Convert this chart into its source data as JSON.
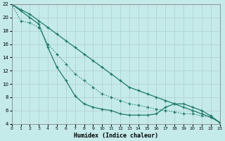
{
  "xlabel": "Humidex (Indice chaleur)",
  "xlim": [
    0,
    23
  ],
  "ylim": [
    4,
    22
  ],
  "xticks": [
    0,
    1,
    2,
    3,
    4,
    5,
    6,
    7,
    8,
    9,
    10,
    11,
    12,
    13,
    14,
    15,
    16,
    17,
    18,
    19,
    20,
    21,
    22,
    23
  ],
  "yticks": [
    4,
    6,
    8,
    10,
    12,
    14,
    16,
    18,
    20,
    22
  ],
  "background_color": "#c5eaea",
  "grid_color": "#b0cccc",
  "line_color": "#1e7a6a",
  "curve_steep_x": [
    0,
    1,
    2,
    3,
    4,
    5,
    6,
    7,
    8,
    9,
    10,
    11,
    12,
    13,
    14,
    15,
    16,
    17,
    18,
    19,
    20,
    21,
    22,
    23
  ],
  "curve_steep_y": [
    22,
    21,
    20,
    19,
    15.5,
    12.5,
    10.5,
    8.2,
    7.0,
    6.5,
    6.2,
    6.0,
    5.5,
    5.3,
    5.3,
    5.3,
    5.5,
    6.5,
    7.0,
    7.0,
    6.5,
    6.0,
    5.2,
    4.2
  ],
  "curve_dotted_x": [
    0,
    1,
    2,
    3,
    4,
    5,
    6,
    7,
    8,
    9,
    10,
    11,
    12,
    13,
    14,
    15,
    16,
    17,
    18,
    19,
    20,
    21,
    22,
    23
  ],
  "curve_dotted_y": [
    22,
    19.5,
    19.2,
    18.5,
    16.0,
    14.5,
    13.0,
    11.5,
    10.5,
    9.5,
    8.5,
    8.0,
    7.5,
    7.0,
    6.8,
    6.5,
    6.2,
    6.0,
    5.8,
    5.5,
    5.5,
    5.2,
    5.0,
    4.2
  ],
  "curve_diag_x": [
    0,
    1,
    2,
    3,
    4,
    5,
    6,
    7,
    8,
    9,
    10,
    11,
    12,
    13,
    14,
    15,
    16,
    17,
    18,
    19,
    20,
    21,
    22,
    23
  ],
  "curve_diag_y": [
    22,
    21.2,
    20.5,
    19.5,
    18.5,
    17.5,
    16.5,
    15.5,
    14.5,
    13.5,
    12.5,
    11.5,
    10.5,
    9.5,
    9.0,
    8.5,
    8.0,
    7.5,
    7.0,
    6.5,
    6.0,
    5.5,
    5.0,
    4.2
  ]
}
